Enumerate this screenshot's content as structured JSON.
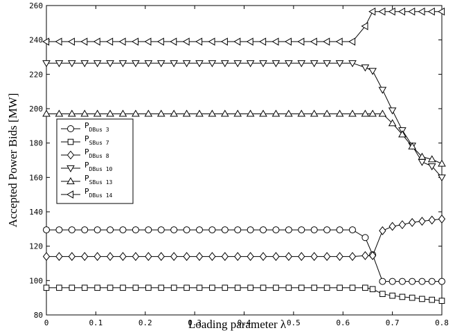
{
  "chart_data": {
    "type": "line",
    "title": "",
    "xlabel": "Loading parameter λ",
    "ylabel": "Accepted Power Bids [MW]",
    "xlim": [
      0,
      0.8
    ],
    "ylim": [
      80,
      260
    ],
    "xticks": [
      0,
      0.1,
      0.2,
      0.3,
      0.4,
      0.5,
      0.6,
      0.7,
      0.8
    ],
    "yticks": [
      80,
      100,
      120,
      140,
      160,
      180,
      200,
      220,
      240,
      260
    ],
    "x_tick_labels": [
      "0",
      "0.1",
      "0.2",
      "0.3",
      "0.4",
      "0.5",
      "0.6",
      "0.7",
      "0.8"
    ],
    "y_tick_labels": [
      "80",
      "100",
      "120",
      "140",
      "160",
      "180",
      "200",
      "220",
      "240",
      "260"
    ],
    "grid": false,
    "legend_position": "center-left",
    "x": [
      0,
      0.0258,
      0.0516,
      0.0774,
      0.1032,
      0.129,
      0.1548,
      0.1806,
      0.2064,
      0.2322,
      0.258,
      0.2838,
      0.3096,
      0.3354,
      0.3612,
      0.387,
      0.4128,
      0.4386,
      0.4644,
      0.4902,
      0.516,
      0.5418,
      0.5676,
      0.5934,
      0.6192,
      0.645,
      0.66,
      0.68,
      0.7,
      0.72,
      0.74,
      0.76,
      0.78,
      0.8
    ],
    "series": [
      {
        "sub": "DBus 3",
        "marker": "circle",
        "values": [
          129.5,
          129.5,
          129.5,
          129.5,
          129.5,
          129.5,
          129.5,
          129.5,
          129.5,
          129.5,
          129.5,
          129.5,
          129.5,
          129.5,
          129.5,
          129.5,
          129.5,
          129.5,
          129.5,
          129.5,
          129.5,
          129.5,
          129.5,
          129.5,
          129.5,
          125,
          115,
          99.5,
          99.5,
          99.5,
          99.5,
          99.5,
          99.5,
          99.5
        ]
      },
      {
        "sub": "SBus 7",
        "marker": "square",
        "values": [
          95.8,
          95.8,
          95.8,
          95.8,
          95.8,
          95.8,
          95.8,
          95.8,
          95.8,
          95.8,
          95.8,
          95.8,
          95.8,
          95.8,
          95.8,
          95.8,
          95.8,
          95.8,
          95.8,
          95.8,
          95.8,
          95.8,
          95.8,
          95.8,
          95.8,
          95.8,
          95,
          92.2,
          91.2,
          90.5,
          90,
          89.3,
          88.8,
          88.2
        ]
      },
      {
        "sub": "DBus 8",
        "marker": "diamond",
        "values": [
          114,
          114,
          114,
          114,
          114,
          114,
          114,
          114,
          114,
          114,
          114,
          114,
          114,
          114,
          114,
          114,
          114,
          114,
          114,
          114,
          114,
          114,
          114,
          114,
          114,
          114.5,
          114.5,
          129,
          131.5,
          132.5,
          133.8,
          134.5,
          135.2,
          135.8
        ]
      },
      {
        "sub": "DBus 10",
        "marker": "triangle-down",
        "values": [
          226.5,
          226.5,
          226.5,
          226.5,
          226.5,
          226.5,
          226.5,
          226.5,
          226.5,
          226.5,
          226.5,
          226.5,
          226.5,
          226.5,
          226.5,
          226.5,
          226.5,
          226.5,
          226.5,
          226.5,
          226.5,
          226.5,
          226.5,
          226.5,
          226.5,
          224,
          222,
          211,
          199,
          187.5,
          178.5,
          169,
          166.5,
          160
        ]
      },
      {
        "sub": "SBus 13",
        "marker": "triangle-up",
        "values": [
          197,
          197,
          197,
          197,
          197,
          197,
          197,
          197,
          197,
          197,
          197,
          197,
          197,
          197,
          197,
          197,
          197,
          197,
          197,
          197,
          197,
          197,
          197,
          197,
          197,
          197,
          197,
          197,
          191.5,
          185,
          178,
          172,
          170.5,
          168
        ]
      },
      {
        "sub": "DBus 14",
        "marker": "triangle-left",
        "values": [
          239,
          239,
          239,
          239,
          239,
          239,
          239,
          239,
          239,
          239,
          239,
          239,
          239,
          239,
          239,
          239,
          239,
          239,
          239,
          239,
          239,
          239,
          239,
          239,
          239,
          248,
          256.5,
          256.5,
          256.5,
          256.5,
          256.5,
          256.5,
          256.5,
          256.5
        ]
      }
    ]
  }
}
